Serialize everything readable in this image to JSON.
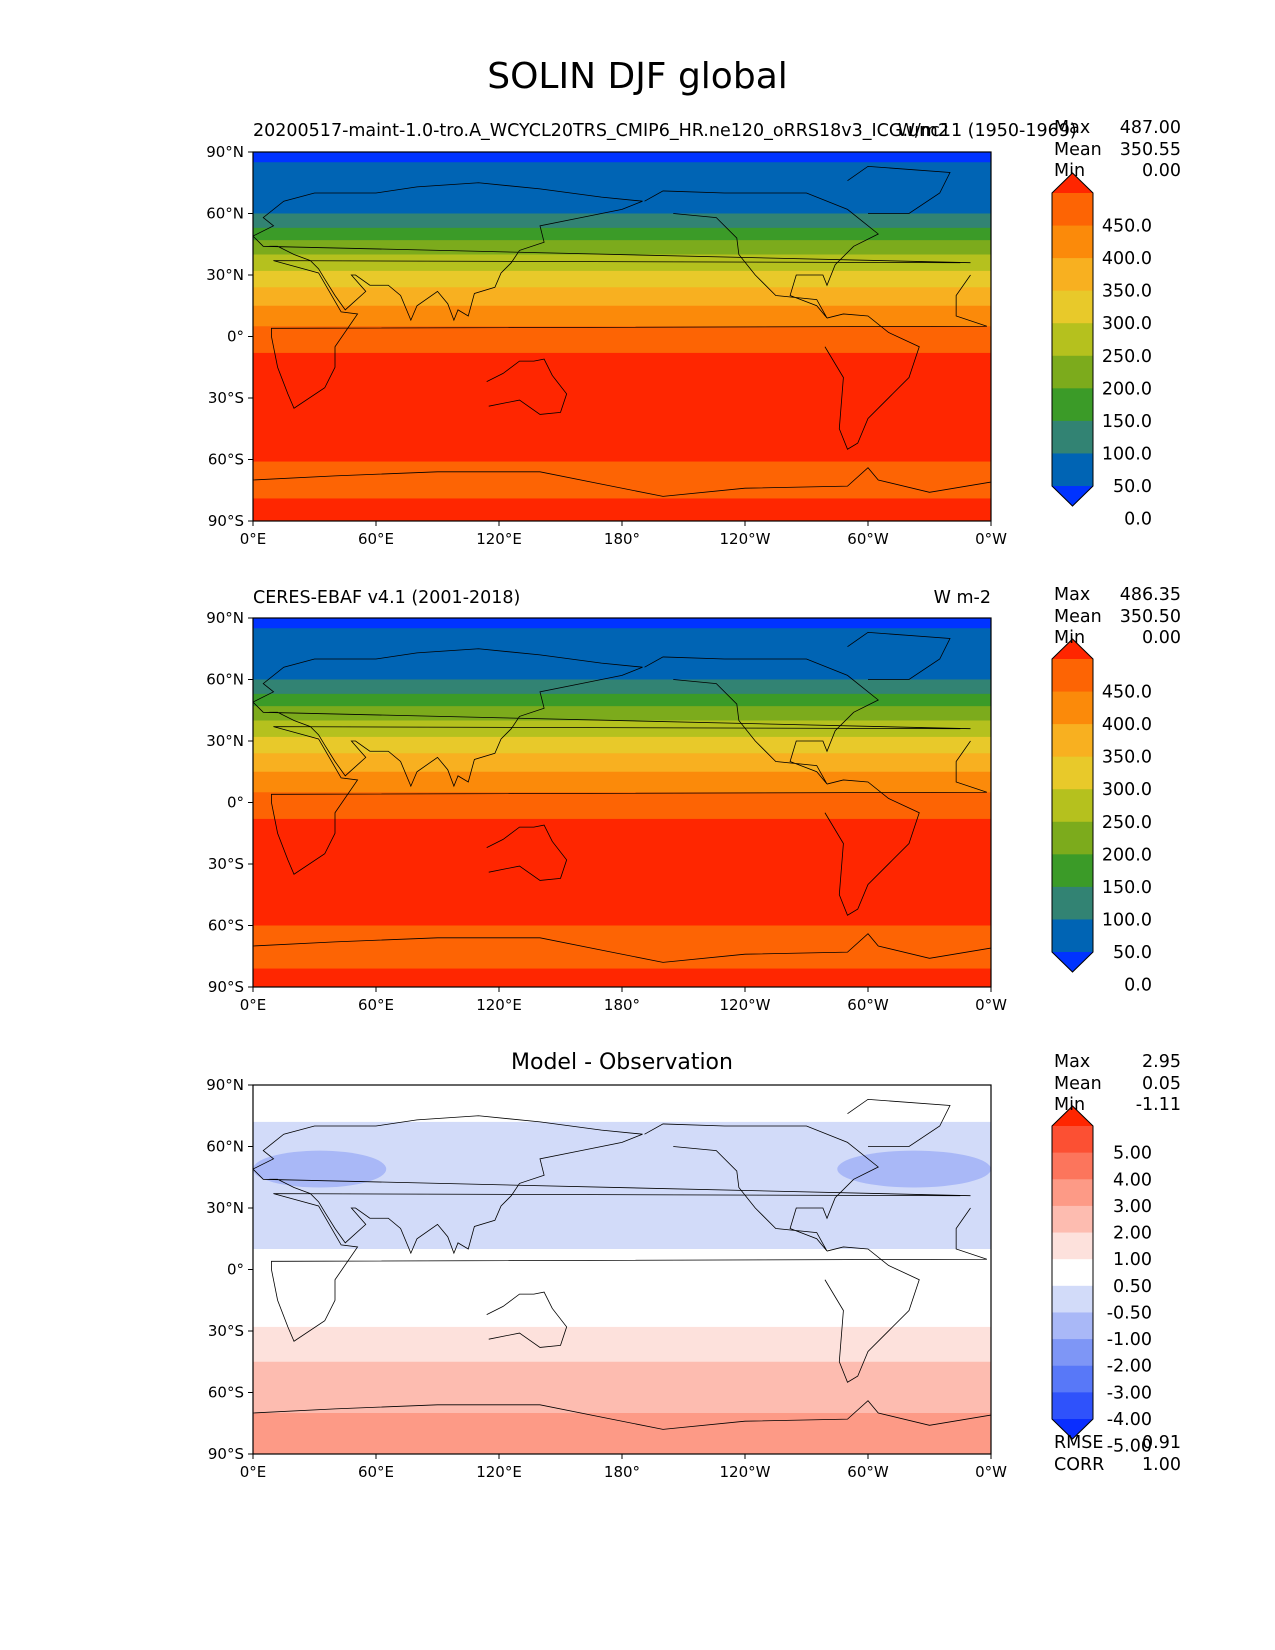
{
  "figure": {
    "title": "SOLIN DJF global"
  },
  "chart_data": [
    {
      "type": "heatmap",
      "title": "20200517-maint-1.0-tro.A_WCYCL20TRS_CMIP6_HR.ne120_oRRS18v3_ICG.unc11 (1950-1969)",
      "units": "W/m2",
      "xticks": [
        "0°E",
        "60°E",
        "120°E",
        "180°",
        "120°W",
        "60°W",
        "0°W"
      ],
      "yticks": [
        "90°N",
        "60°N",
        "30°N",
        "0°",
        "30°S",
        "60°S",
        "90°S"
      ],
      "xlim": [
        0,
        360
      ],
      "ylim": [
        -90,
        90
      ],
      "stats": {
        "max_label": "Max",
        "max": "487.00",
        "mean_label": "Mean",
        "mean": "350.55",
        "min_label": "Min",
        "min": "0.00"
      },
      "colorbar": {
        "labels": [
          "450.0",
          "400.0",
          "350.0",
          "300.0",
          "250.0",
          "200.0",
          "150.0",
          "100.0",
          "50.0",
          "0.0"
        ],
        "colors": [
          "#0033ff",
          "#0064b4",
          "#328373",
          "#3b9b28",
          "#7cab1c",
          "#b5c11e",
          "#e8c92a",
          "#f8b020",
          "#fb8a0a",
          "#fd6404",
          "#ff2600"
        ]
      },
      "zonal_bands": [
        {
          "lat_from": 90,
          "lat_to": 85,
          "color": "#0033ff"
        },
        {
          "lat_from": 85,
          "lat_to": 60,
          "color": "#0064b4"
        },
        {
          "lat_from": 60,
          "lat_to": 53,
          "color": "#328373"
        },
        {
          "lat_from": 53,
          "lat_to": 47,
          "color": "#3b9b28"
        },
        {
          "lat_from": 47,
          "lat_to": 40,
          "color": "#7cab1c"
        },
        {
          "lat_from": 40,
          "lat_to": 32,
          "color": "#b5c11e"
        },
        {
          "lat_from": 32,
          "lat_to": 24,
          "color": "#e8c92a"
        },
        {
          "lat_from": 24,
          "lat_to": 15,
          "color": "#f8b020"
        },
        {
          "lat_from": 15,
          "lat_to": 5,
          "color": "#fb8a0a"
        },
        {
          "lat_from": 5,
          "lat_to": -8,
          "color": "#fd6404"
        },
        {
          "lat_from": -8,
          "lat_to": -61,
          "color": "#ff2600"
        },
        {
          "lat_from": -61,
          "lat_to": -79,
          "color": "#fd6404"
        },
        {
          "lat_from": -79,
          "lat_to": -90,
          "color": "#ff2600"
        }
      ]
    },
    {
      "type": "heatmap",
      "title": "CERES-EBAF v4.1 (2001-2018)",
      "units": "W m-2",
      "xticks": [
        "0°E",
        "60°E",
        "120°E",
        "180°",
        "120°W",
        "60°W",
        "0°W"
      ],
      "yticks": [
        "90°N",
        "60°N",
        "30°N",
        "0°",
        "30°S",
        "60°S",
        "90°S"
      ],
      "xlim": [
        0,
        360
      ],
      "ylim": [
        -90,
        90
      ],
      "stats": {
        "max_label": "Max",
        "max": "486.35",
        "mean_label": "Mean",
        "mean": "350.50",
        "min_label": "Min",
        "min": "0.00"
      },
      "colorbar": {
        "labels": [
          "450.0",
          "400.0",
          "350.0",
          "300.0",
          "250.0",
          "200.0",
          "150.0",
          "100.0",
          "50.0",
          "0.0"
        ],
        "colors": [
          "#0033ff",
          "#0064b4",
          "#328373",
          "#3b9b28",
          "#7cab1c",
          "#b5c11e",
          "#e8c92a",
          "#f8b020",
          "#fb8a0a",
          "#fd6404",
          "#ff2600"
        ]
      },
      "zonal_bands": [
        {
          "lat_from": 90,
          "lat_to": 85,
          "color": "#0033ff"
        },
        {
          "lat_from": 85,
          "lat_to": 60,
          "color": "#0064b4"
        },
        {
          "lat_from": 60,
          "lat_to": 53,
          "color": "#328373"
        },
        {
          "lat_from": 53,
          "lat_to": 47,
          "color": "#3b9b28"
        },
        {
          "lat_from": 47,
          "lat_to": 40,
          "color": "#7cab1c"
        },
        {
          "lat_from": 40,
          "lat_to": 32,
          "color": "#b5c11e"
        },
        {
          "lat_from": 32,
          "lat_to": 24,
          "color": "#e8c92a"
        },
        {
          "lat_from": 24,
          "lat_to": 15,
          "color": "#f8b020"
        },
        {
          "lat_from": 15,
          "lat_to": 5,
          "color": "#fb8a0a"
        },
        {
          "lat_from": 5,
          "lat_to": -8,
          "color": "#fd6404"
        },
        {
          "lat_from": -8,
          "lat_to": -60,
          "color": "#ff2600"
        },
        {
          "lat_from": -60,
          "lat_to": -81,
          "color": "#fd6404"
        },
        {
          "lat_from": -81,
          "lat_to": -90,
          "color": "#ff2600"
        }
      ]
    },
    {
      "type": "heatmap",
      "title": "Model - Observation",
      "xticks": [
        "0°E",
        "60°E",
        "120°E",
        "180°",
        "120°W",
        "60°W",
        "0°W"
      ],
      "yticks": [
        "90°N",
        "60°N",
        "30°N",
        "0°",
        "30°S",
        "60°S",
        "90°S"
      ],
      "xlim": [
        0,
        360
      ],
      "ylim": [
        -90,
        90
      ],
      "stats": {
        "max_label": "Max",
        "max": "2.95",
        "mean_label": "Mean",
        "mean": "0.05",
        "min_label": "Min",
        "min": "-1.11"
      },
      "metrics": {
        "rmse_label": "RMSE",
        "rmse": "0.91",
        "corr_label": "CORR",
        "corr": "1.00"
      },
      "colorbar": {
        "labels": [
          "5.00",
          "4.00",
          "3.00",
          "2.00",
          "1.00",
          "0.50",
          "-0.50",
          "-1.00",
          "-2.00",
          "-3.00",
          "-4.00",
          "-5.00"
        ],
        "colors": [
          "#0a2eff",
          "#2f52fb",
          "#5878f8",
          "#7e96f6",
          "#a9b8f7",
          "#d2dbf9",
          "#ffffff",
          "#fde1dc",
          "#fdbcb0",
          "#fd9a86",
          "#fc755c",
          "#fc5033",
          "#ff2600"
        ]
      },
      "zonal_bands": [
        {
          "lat_from": 90,
          "lat_to": 72,
          "color": "#ffffff"
        },
        {
          "lat_from": 72,
          "lat_to": 10,
          "color": "#d2dbf9"
        },
        {
          "lat_from": 10,
          "lat_to": -28,
          "color": "#ffffff"
        },
        {
          "lat_from": -28,
          "lat_to": -45,
          "color": "#fde1dc"
        },
        {
          "lat_from": -45,
          "lat_to": -70,
          "color": "#fdbcb0"
        },
        {
          "lat_from": -70,
          "lat_to": -90,
          "color": "#fd9a86"
        }
      ],
      "patches": [
        {
          "lon_from": 0,
          "lon_to": 65,
          "lat_from": 58,
          "lat_to": 40,
          "color": "#a9b8f7"
        },
        {
          "lon_from": 285,
          "lon_to": 360,
          "lat_from": 58,
          "lat_to": 40,
          "color": "#a9b8f7"
        }
      ]
    }
  ]
}
